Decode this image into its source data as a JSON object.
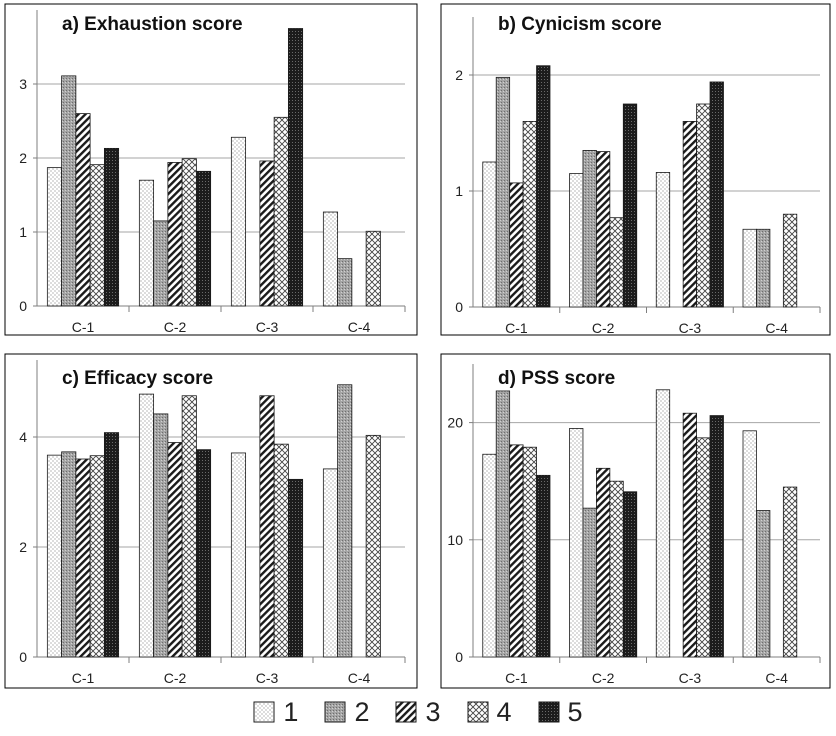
{
  "chart_data": [
    {
      "type": "bar",
      "title": "a) Exhaustion score",
      "categories": [
        "C-1",
        "C-2",
        "C-3",
        "C-4"
      ],
      "ylim": [
        0,
        4
      ],
      "yticks": [
        0,
        1,
        2,
        3
      ],
      "grid": true,
      "series": [
        {
          "name": "1",
          "values": [
            1.87,
            1.7,
            2.28,
            1.27
          ]
        },
        {
          "name": "2",
          "values": [
            3.11,
            1.15,
            null,
            0.64
          ]
        },
        {
          "name": "3",
          "values": [
            2.6,
            1.94,
            1.96,
            null
          ]
        },
        {
          "name": "4",
          "values": [
            1.91,
            1.99,
            2.55,
            1.01
          ]
        },
        {
          "name": "5",
          "values": [
            2.13,
            1.82,
            3.75,
            null
          ]
        }
      ]
    },
    {
      "type": "bar",
      "title": "b) Cynicism score",
      "categories": [
        "C-1",
        "C-2",
        "C-3",
        "C-4"
      ],
      "ylim": [
        0,
        2.5
      ],
      "yticks": [
        0,
        1,
        2
      ],
      "grid": true,
      "series": [
        {
          "name": "1",
          "values": [
            1.25,
            1.15,
            1.16,
            0.67
          ]
        },
        {
          "name": "2",
          "values": [
            1.98,
            1.35,
            null,
            0.67
          ]
        },
        {
          "name": "3",
          "values": [
            1.07,
            1.34,
            1.6,
            null
          ]
        },
        {
          "name": "4",
          "values": [
            1.6,
            0.77,
            1.75,
            0.8
          ]
        },
        {
          "name": "5",
          "values": [
            2.08,
            1.75,
            1.94,
            null
          ]
        }
      ]
    },
    {
      "type": "bar",
      "title": "c) Efficacy score",
      "categories": [
        "C-1",
        "C-2",
        "C-3",
        "C-4"
      ],
      "ylim": [
        0,
        5.4
      ],
      "yticks": [
        0,
        2,
        4
      ],
      "grid": true,
      "series": [
        {
          "name": "1",
          "values": [
            3.67,
            4.78,
            3.71,
            3.42
          ]
        },
        {
          "name": "2",
          "values": [
            3.73,
            4.42,
            null,
            4.95
          ]
        },
        {
          "name": "3",
          "values": [
            3.6,
            3.9,
            4.75,
            null
          ]
        },
        {
          "name": "4",
          "values": [
            3.66,
            4.75,
            3.87,
            4.03
          ]
        },
        {
          "name": "5",
          "values": [
            4.08,
            3.77,
            3.23,
            null
          ]
        }
      ]
    },
    {
      "type": "bar",
      "title": "d) PSS score",
      "categories": [
        "C-1",
        "C-2",
        "C-3",
        "C-4"
      ],
      "ylim": [
        0,
        25
      ],
      "yticks": [
        0,
        10,
        20
      ],
      "grid": true,
      "series": [
        {
          "name": "1",
          "values": [
            17.3,
            19.5,
            22.8,
            19.3
          ]
        },
        {
          "name": "2",
          "values": [
            22.7,
            12.7,
            null,
            12.5
          ]
        },
        {
          "name": "3",
          "values": [
            18.1,
            16.1,
            20.8,
            null
          ]
        },
        {
          "name": "4",
          "values": [
            17.9,
            15.0,
            18.7,
            14.5
          ]
        },
        {
          "name": "5",
          "values": [
            15.5,
            14.1,
            20.6,
            null
          ]
        }
      ]
    }
  ],
  "legend": {
    "placement": "bottom",
    "items": [
      {
        "label": "1",
        "pattern": "dots"
      },
      {
        "label": "2",
        "pattern": "gray-fine"
      },
      {
        "label": "3",
        "pattern": "diagonal"
      },
      {
        "label": "4",
        "pattern": "crosshatch"
      },
      {
        "label": "5",
        "pattern": "dark"
      }
    ]
  },
  "colors": {
    "axis": "#7f7f7f",
    "grid": "#a6a6a6",
    "border": "#000000",
    "text": "#222222"
  }
}
